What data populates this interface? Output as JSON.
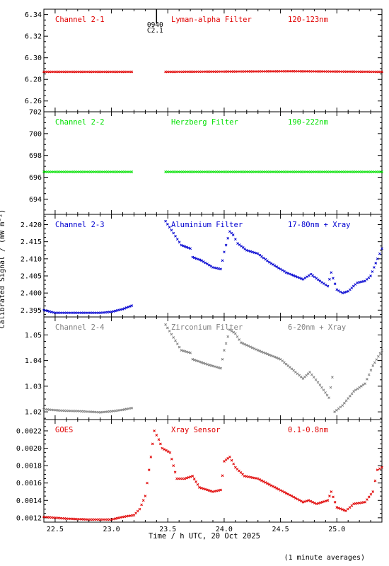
{
  "chart_data": {
    "type": "scatter",
    "xlabel": "Time / h UTC, 20 Oct 2025",
    "ylabel": "Calibrated Signal / (mW m⁻²)",
    "footnote": "(1 minute averages)",
    "xlim": [
      22.4,
      25.4
    ],
    "x_ticks": [
      "22.5",
      "23.0",
      "23.5",
      "24.0",
      "24.5",
      "25.0"
    ],
    "x_tick_values": [
      22.5,
      23.0,
      23.5,
      24.0,
      24.5,
      25.0
    ],
    "annotations": [
      {
        "text": "0940",
        "x": 23.4
      },
      {
        "text": "C2.1",
        "x": 23.4
      }
    ],
    "panels": [
      {
        "channel": "Channel 2-1",
        "filter": "Lyman-alpha Filter",
        "band": "120-123nm",
        "color": "#e00000",
        "ylim": [
          6.25,
          6.345
        ],
        "y_ticks": [
          "6.26",
          "6.28",
          "6.30",
          "6.32",
          "6.34"
        ],
        "y_tick_values": [
          6.26,
          6.28,
          6.3,
          6.32,
          6.34
        ],
        "points": [
          [
            22.4,
            6.287
          ],
          [
            23.18,
            6.287
          ],
          [
            23.18,
            null
          ],
          [
            23.48,
            6.287
          ],
          [
            24.6,
            6.2875
          ],
          [
            25.4,
            6.287
          ]
        ]
      },
      {
        "channel": "Channel 2-2",
        "filter": "Herzberg Filter",
        "band": "190-222nm",
        "color": "#00e000",
        "ylim": [
          692.6,
          702.0
        ],
        "y_ticks": [
          "694",
          "696",
          "698",
          "700",
          "702"
        ],
        "y_tick_values": [
          694,
          696,
          698,
          700,
          702
        ],
        "points": [
          [
            22.4,
            696.5
          ],
          [
            23.18,
            696.5
          ],
          [
            23.18,
            null
          ],
          [
            23.48,
            696.5
          ],
          [
            24.2,
            696.5
          ],
          [
            25.4,
            696.5
          ]
        ]
      },
      {
        "channel": "Channel 2-3",
        "filter": "Aluminium Filter",
        "band": "17-80nm + Xray",
        "color": "#0000d0",
        "ylim": [
          2.393,
          2.423
        ],
        "y_ticks": [
          "2.395",
          "2.400",
          "2.405",
          "2.410",
          "2.415",
          "2.420"
        ],
        "y_tick_values": [
          2.395,
          2.4,
          2.405,
          2.41,
          2.415,
          2.42
        ],
        "points": [
          [
            22.4,
            2.395
          ],
          [
            22.5,
            2.3942
          ],
          [
            22.7,
            2.3942
          ],
          [
            22.9,
            2.3942
          ],
          [
            23.0,
            2.3945
          ],
          [
            23.1,
            2.3953
          ],
          [
            23.18,
            2.3963
          ],
          [
            23.18,
            null
          ],
          [
            23.48,
            2.421
          ],
          [
            23.55,
            2.4175
          ],
          [
            23.62,
            2.414
          ],
          [
            23.7,
            2.413
          ],
          [
            23.72,
            2.4105
          ],
          [
            23.8,
            2.4095
          ],
          [
            23.9,
            2.4075
          ],
          [
            23.97,
            2.407
          ],
          [
            24.0,
            2.412
          ],
          [
            24.05,
            2.418
          ],
          [
            24.08,
            2.417
          ],
          [
            24.12,
            2.4145
          ],
          [
            24.2,
            2.4125
          ],
          [
            24.3,
            2.4115
          ],
          [
            24.4,
            2.409
          ],
          [
            24.55,
            2.406
          ],
          [
            24.7,
            2.404
          ],
          [
            24.77,
            2.4055
          ],
          [
            24.85,
            2.4035
          ],
          [
            24.92,
            2.402
          ],
          [
            24.95,
            2.406
          ],
          [
            25.0,
            2.401
          ],
          [
            25.05,
            2.4
          ],
          [
            25.1,
            2.4005
          ],
          [
            25.18,
            2.403
          ],
          [
            25.25,
            2.4035
          ],
          [
            25.3,
            2.405
          ],
          [
            25.36,
            2.41
          ],
          [
            25.4,
            2.413
          ]
        ]
      },
      {
        "channel": "Channel 2-4",
        "filter": "Zirconium Filter",
        "band": "6-20nm + Xray",
        "color": "#808080",
        "ylim": [
          1.017,
          1.057
        ],
        "y_ticks": [
          "1.02",
          "1.03",
          "1.04",
          "1.05"
        ],
        "y_tick_values": [
          1.02,
          1.03,
          1.04,
          1.05
        ],
        "points": [
          [
            22.4,
            1.021
          ],
          [
            22.55,
            1.0205
          ],
          [
            22.7,
            1.0203
          ],
          [
            22.9,
            1.0198
          ],
          [
            23.0,
            1.0202
          ],
          [
            23.1,
            1.0208
          ],
          [
            23.18,
            1.0215
          ],
          [
            23.18,
            null
          ],
          [
            23.48,
            1.054
          ],
          [
            23.55,
            1.049
          ],
          [
            23.62,
            1.044
          ],
          [
            23.7,
            1.043
          ],
          [
            23.72,
            1.0405
          ],
          [
            23.85,
            1.0385
          ],
          [
            23.97,
            1.037
          ],
          [
            24.0,
            1.044
          ],
          [
            24.05,
            1.052
          ],
          [
            24.1,
            1.0505
          ],
          [
            24.15,
            1.047
          ],
          [
            24.3,
            1.044
          ],
          [
            24.5,
            1.0405
          ],
          [
            24.7,
            1.033
          ],
          [
            24.76,
            1.0355
          ],
          [
            24.85,
            1.0305
          ],
          [
            24.93,
            1.0255
          ],
          [
            24.96,
            1.0335
          ],
          [
            24.98,
            1.02
          ],
          [
            25.05,
            1.0225
          ],
          [
            25.15,
            1.028
          ],
          [
            25.25,
            1.031
          ],
          [
            25.32,
            1.038
          ],
          [
            25.4,
            1.044
          ]
        ]
      },
      {
        "channel": "GOES",
        "filter": "Xray Sensor",
        "band": "0.1-0.8nm",
        "color": "#e00000",
        "ylim": [
          0.00115,
          0.00233
        ],
        "y_ticks": [
          "0.0012",
          "0.0014",
          "0.0016",
          "0.0018",
          "0.0020",
          "0.0022"
        ],
        "y_tick_values": [
          0.0012,
          0.0014,
          0.0016,
          0.0018,
          0.002,
          0.0022
        ],
        "points": [
          [
            22.4,
            0.00121
          ],
          [
            22.6,
            0.00119
          ],
          [
            22.8,
            0.00118
          ],
          [
            23.0,
            0.00118
          ],
          [
            23.1,
            0.00121
          ],
          [
            23.2,
            0.00123
          ],
          [
            23.25,
            0.0013
          ],
          [
            23.3,
            0.00145
          ],
          [
            23.35,
            0.0019
          ],
          [
            23.38,
            0.0022
          ],
          [
            23.42,
            0.0021
          ],
          [
            23.45,
            0.002
          ],
          [
            23.52,
            0.00195
          ],
          [
            23.58,
            0.00165
          ],
          [
            23.65,
            0.00165
          ],
          [
            23.72,
            0.00168
          ],
          [
            23.78,
            0.00155
          ],
          [
            23.9,
            0.0015
          ],
          [
            23.97,
            0.00152
          ],
          [
            24.0,
            0.00185
          ],
          [
            24.05,
            0.0019
          ],
          [
            24.1,
            0.00178
          ],
          [
            24.18,
            0.00168
          ],
          [
            24.3,
            0.00165
          ],
          [
            24.45,
            0.00155
          ],
          [
            24.6,
            0.00145
          ],
          [
            24.7,
            0.00138
          ],
          [
            24.75,
            0.0014
          ],
          [
            24.82,
            0.00136
          ],
          [
            24.92,
            0.0014
          ],
          [
            24.95,
            0.0015
          ],
          [
            25.0,
            0.00132
          ],
          [
            25.08,
            0.00128
          ],
          [
            25.15,
            0.00136
          ],
          [
            25.25,
            0.00138
          ],
          [
            25.32,
            0.0015
          ],
          [
            25.36,
            0.00175
          ],
          [
            25.4,
            0.00178
          ]
        ]
      }
    ]
  }
}
